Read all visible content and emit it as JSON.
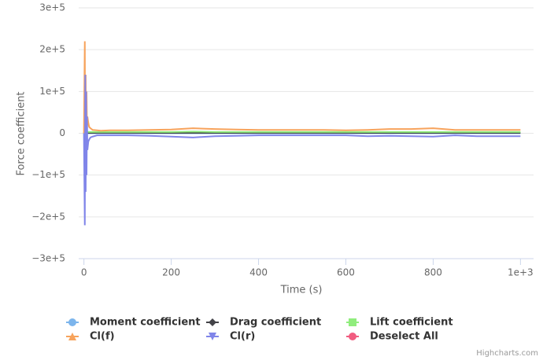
{
  "chart_data": {
    "type": "line",
    "x_label": "Time (s)",
    "y_label": "Force coefficient",
    "credits": "Highcharts.com",
    "xlim": [
      -12,
      1030
    ],
    "ylim": [
      -300000,
      300000
    ],
    "xticks": [
      0,
      200,
      400,
      600,
      800,
      {
        "value": 1000,
        "label": "1e+3"
      }
    ],
    "yticks": [
      {
        "value": -300000,
        "label": "−3e+5"
      },
      {
        "value": -200000,
        "label": "−2e+5"
      },
      {
        "value": -100000,
        "label": "−1e+5"
      },
      0,
      {
        "value": 100000,
        "label": "1e+5"
      },
      {
        "value": 200000,
        "label": "2e+5"
      },
      {
        "value": 300000,
        "label": "3e+5"
      }
    ],
    "grid": true,
    "x": [
      0,
      2,
      3,
      4,
      5,
      6,
      7,
      8,
      10,
      12,
      15,
      20,
      30,
      40,
      60,
      80,
      100,
      150,
      200,
      250,
      300,
      350,
      400,
      450,
      500,
      550,
      600,
      650,
      700,
      750,
      800,
      850,
      900,
      950,
      1000
    ],
    "series": [
      {
        "name": "Moment coefficient",
        "color": "#7cb5ec",
        "marker": "circle",
        "values": [
          0,
          2000,
          -2000,
          1000,
          -1000,
          500,
          0,
          0,
          0,
          0,
          0,
          0,
          0,
          0,
          0,
          0,
          0,
          0,
          0,
          0,
          0,
          0,
          0,
          0,
          0,
          0,
          0,
          0,
          0,
          0,
          0,
          0,
          0,
          0,
          0
        ]
      },
      {
        "name": "Drag coefficient",
        "color": "#434348",
        "marker": "diamond",
        "values": [
          0,
          5000,
          -3000,
          3000,
          -2000,
          2000,
          1000,
          1000,
          1000,
          1000,
          1000,
          1000,
          1000,
          1000,
          1000,
          1000,
          1000,
          1000,
          1000,
          1000,
          1000,
          1000,
          1000,
          1000,
          1000,
          1000,
          1000,
          1000,
          1000,
          1000,
          1000,
          1000,
          1000,
          1000,
          1000
        ]
      },
      {
        "name": "Lift coefficient",
        "color": "#90ed7d",
        "marker": "square",
        "values": [
          0,
          8000,
          -5000,
          6000,
          -3000,
          5000,
          3000,
          4000,
          3000,
          3000,
          3000,
          3000,
          3000,
          3000,
          3000,
          3000,
          3000,
          3000,
          3000,
          4000,
          3000,
          3000,
          3000,
          3000,
          3000,
          3000,
          3000,
          3000,
          3000,
          3000,
          3000,
          3000,
          3000,
          3000,
          3000
        ]
      },
      {
        "name": "Cl(f)",
        "color": "#f7a35c",
        "marker": "triangle",
        "values": [
          0,
          220000,
          -130000,
          140000,
          -50000,
          100000,
          10000,
          40000,
          25000,
          15000,
          12000,
          8000,
          7000,
          6000,
          7000,
          7000,
          7000,
          8000,
          9000,
          12000,
          10000,
          9000,
          8000,
          8000,
          8000,
          8000,
          7000,
          8000,
          10000,
          10000,
          12000,
          8000,
          8000,
          8000,
          8000
        ]
      },
      {
        "name": "Cl(r)",
        "color": "#8085e9",
        "marker": "triangle-down",
        "values": [
          0,
          -220000,
          140000,
          -140000,
          100000,
          -100000,
          40000,
          -40000,
          -20000,
          -15000,
          -10000,
          -8000,
          -5000,
          -5000,
          -5000,
          -5000,
          -5000,
          -6000,
          -8000,
          -10000,
          -7000,
          -6000,
          -5000,
          -5000,
          -5000,
          -5000,
          -5000,
          -7000,
          -6000,
          -7000,
          -8000,
          -5000,
          -7000,
          -7000,
          -7000
        ]
      },
      {
        "name": "Deselect All",
        "color": "#f15c80",
        "marker": "circle",
        "values": [
          null,
          null,
          null,
          null,
          null,
          null,
          null,
          null,
          null,
          null,
          null,
          null,
          null,
          null,
          null,
          null,
          null,
          null,
          null,
          null,
          null,
          null,
          null,
          null,
          null,
          null,
          null,
          null,
          null,
          null,
          null,
          null,
          null,
          null,
          null
        ]
      }
    ]
  }
}
